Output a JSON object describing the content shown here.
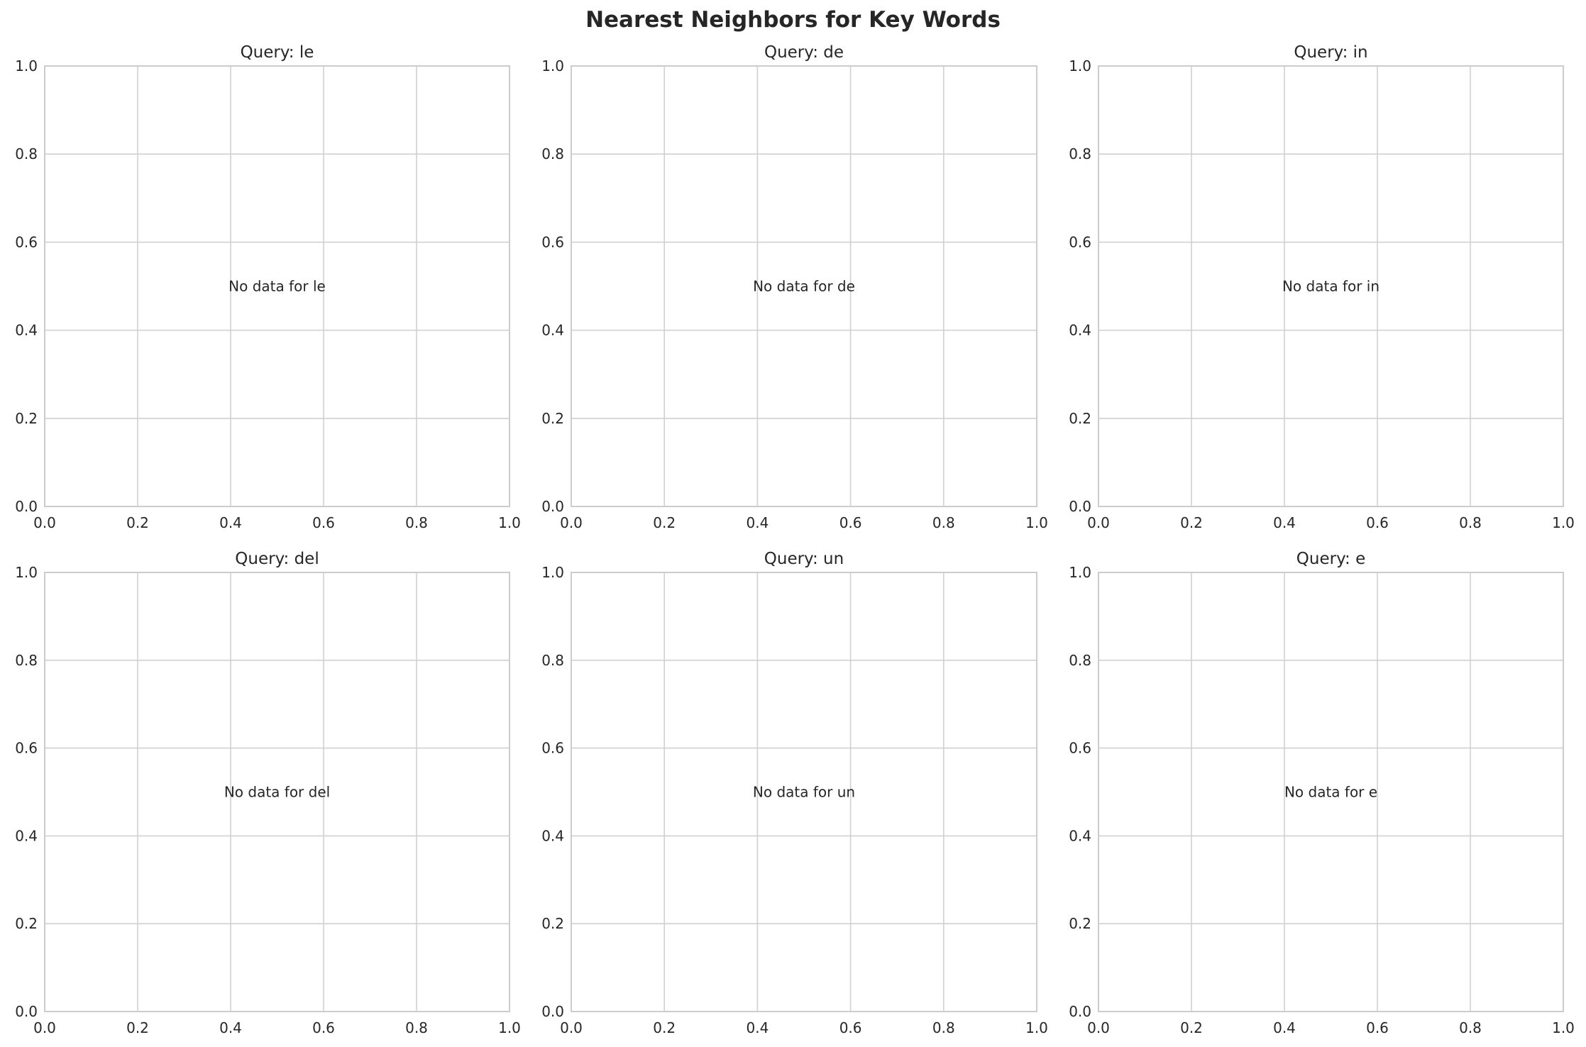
{
  "chart_data": [
    {
      "type": "scatter",
      "title": "Query: le",
      "message": "No data for le",
      "xlim": [
        0,
        1
      ],
      "ylim": [
        0,
        1
      ],
      "xticks": [
        "0.0",
        "0.2",
        "0.4",
        "0.6",
        "0.8",
        "1.0"
      ],
      "yticks": [
        "0.0",
        "0.2",
        "0.4",
        "0.6",
        "0.8",
        "1.0"
      ],
      "grid": true,
      "points": []
    },
    {
      "type": "scatter",
      "title": "Query: de",
      "message": "No data for de",
      "xlim": [
        0,
        1
      ],
      "ylim": [
        0,
        1
      ],
      "xticks": [
        "0.0",
        "0.2",
        "0.4",
        "0.6",
        "0.8",
        "1.0"
      ],
      "yticks": [
        "0.0",
        "0.2",
        "0.4",
        "0.6",
        "0.8",
        "1.0"
      ],
      "grid": true,
      "points": []
    },
    {
      "type": "scatter",
      "title": "Query: in",
      "message": "No data for in",
      "xlim": [
        0,
        1
      ],
      "ylim": [
        0,
        1
      ],
      "xticks": [
        "0.0",
        "0.2",
        "0.4",
        "0.6",
        "0.8",
        "1.0"
      ],
      "yticks": [
        "0.0",
        "0.2",
        "0.4",
        "0.6",
        "0.8",
        "1.0"
      ],
      "grid": true,
      "points": []
    },
    {
      "type": "scatter",
      "title": "Query: del",
      "message": "No data for del",
      "xlim": [
        0,
        1
      ],
      "ylim": [
        0,
        1
      ],
      "xticks": [
        "0.0",
        "0.2",
        "0.4",
        "0.6",
        "0.8",
        "1.0"
      ],
      "yticks": [
        "0.0",
        "0.2",
        "0.4",
        "0.6",
        "0.8",
        "1.0"
      ],
      "grid": true,
      "points": []
    },
    {
      "type": "scatter",
      "title": "Query: un",
      "message": "No data for un",
      "xlim": [
        0,
        1
      ],
      "ylim": [
        0,
        1
      ],
      "xticks": [
        "0.0",
        "0.2",
        "0.4",
        "0.6",
        "0.8",
        "1.0"
      ],
      "yticks": [
        "0.0",
        "0.2",
        "0.4",
        "0.6",
        "0.8",
        "1.0"
      ],
      "grid": true,
      "points": []
    },
    {
      "type": "scatter",
      "title": "Query: e",
      "message": "No data for e",
      "xlim": [
        0,
        1
      ],
      "ylim": [
        0,
        1
      ],
      "xticks": [
        "0.0",
        "0.2",
        "0.4",
        "0.6",
        "0.8",
        "1.0"
      ],
      "yticks": [
        "0.0",
        "0.2",
        "0.4",
        "0.6",
        "0.8",
        "1.0"
      ],
      "grid": true,
      "points": []
    }
  ],
  "figure": {
    "title": "Nearest Neighbors for Key Words"
  },
  "colors": {
    "grid": "#d0d0d0",
    "spine": "#cccccc",
    "text": "#262626"
  }
}
